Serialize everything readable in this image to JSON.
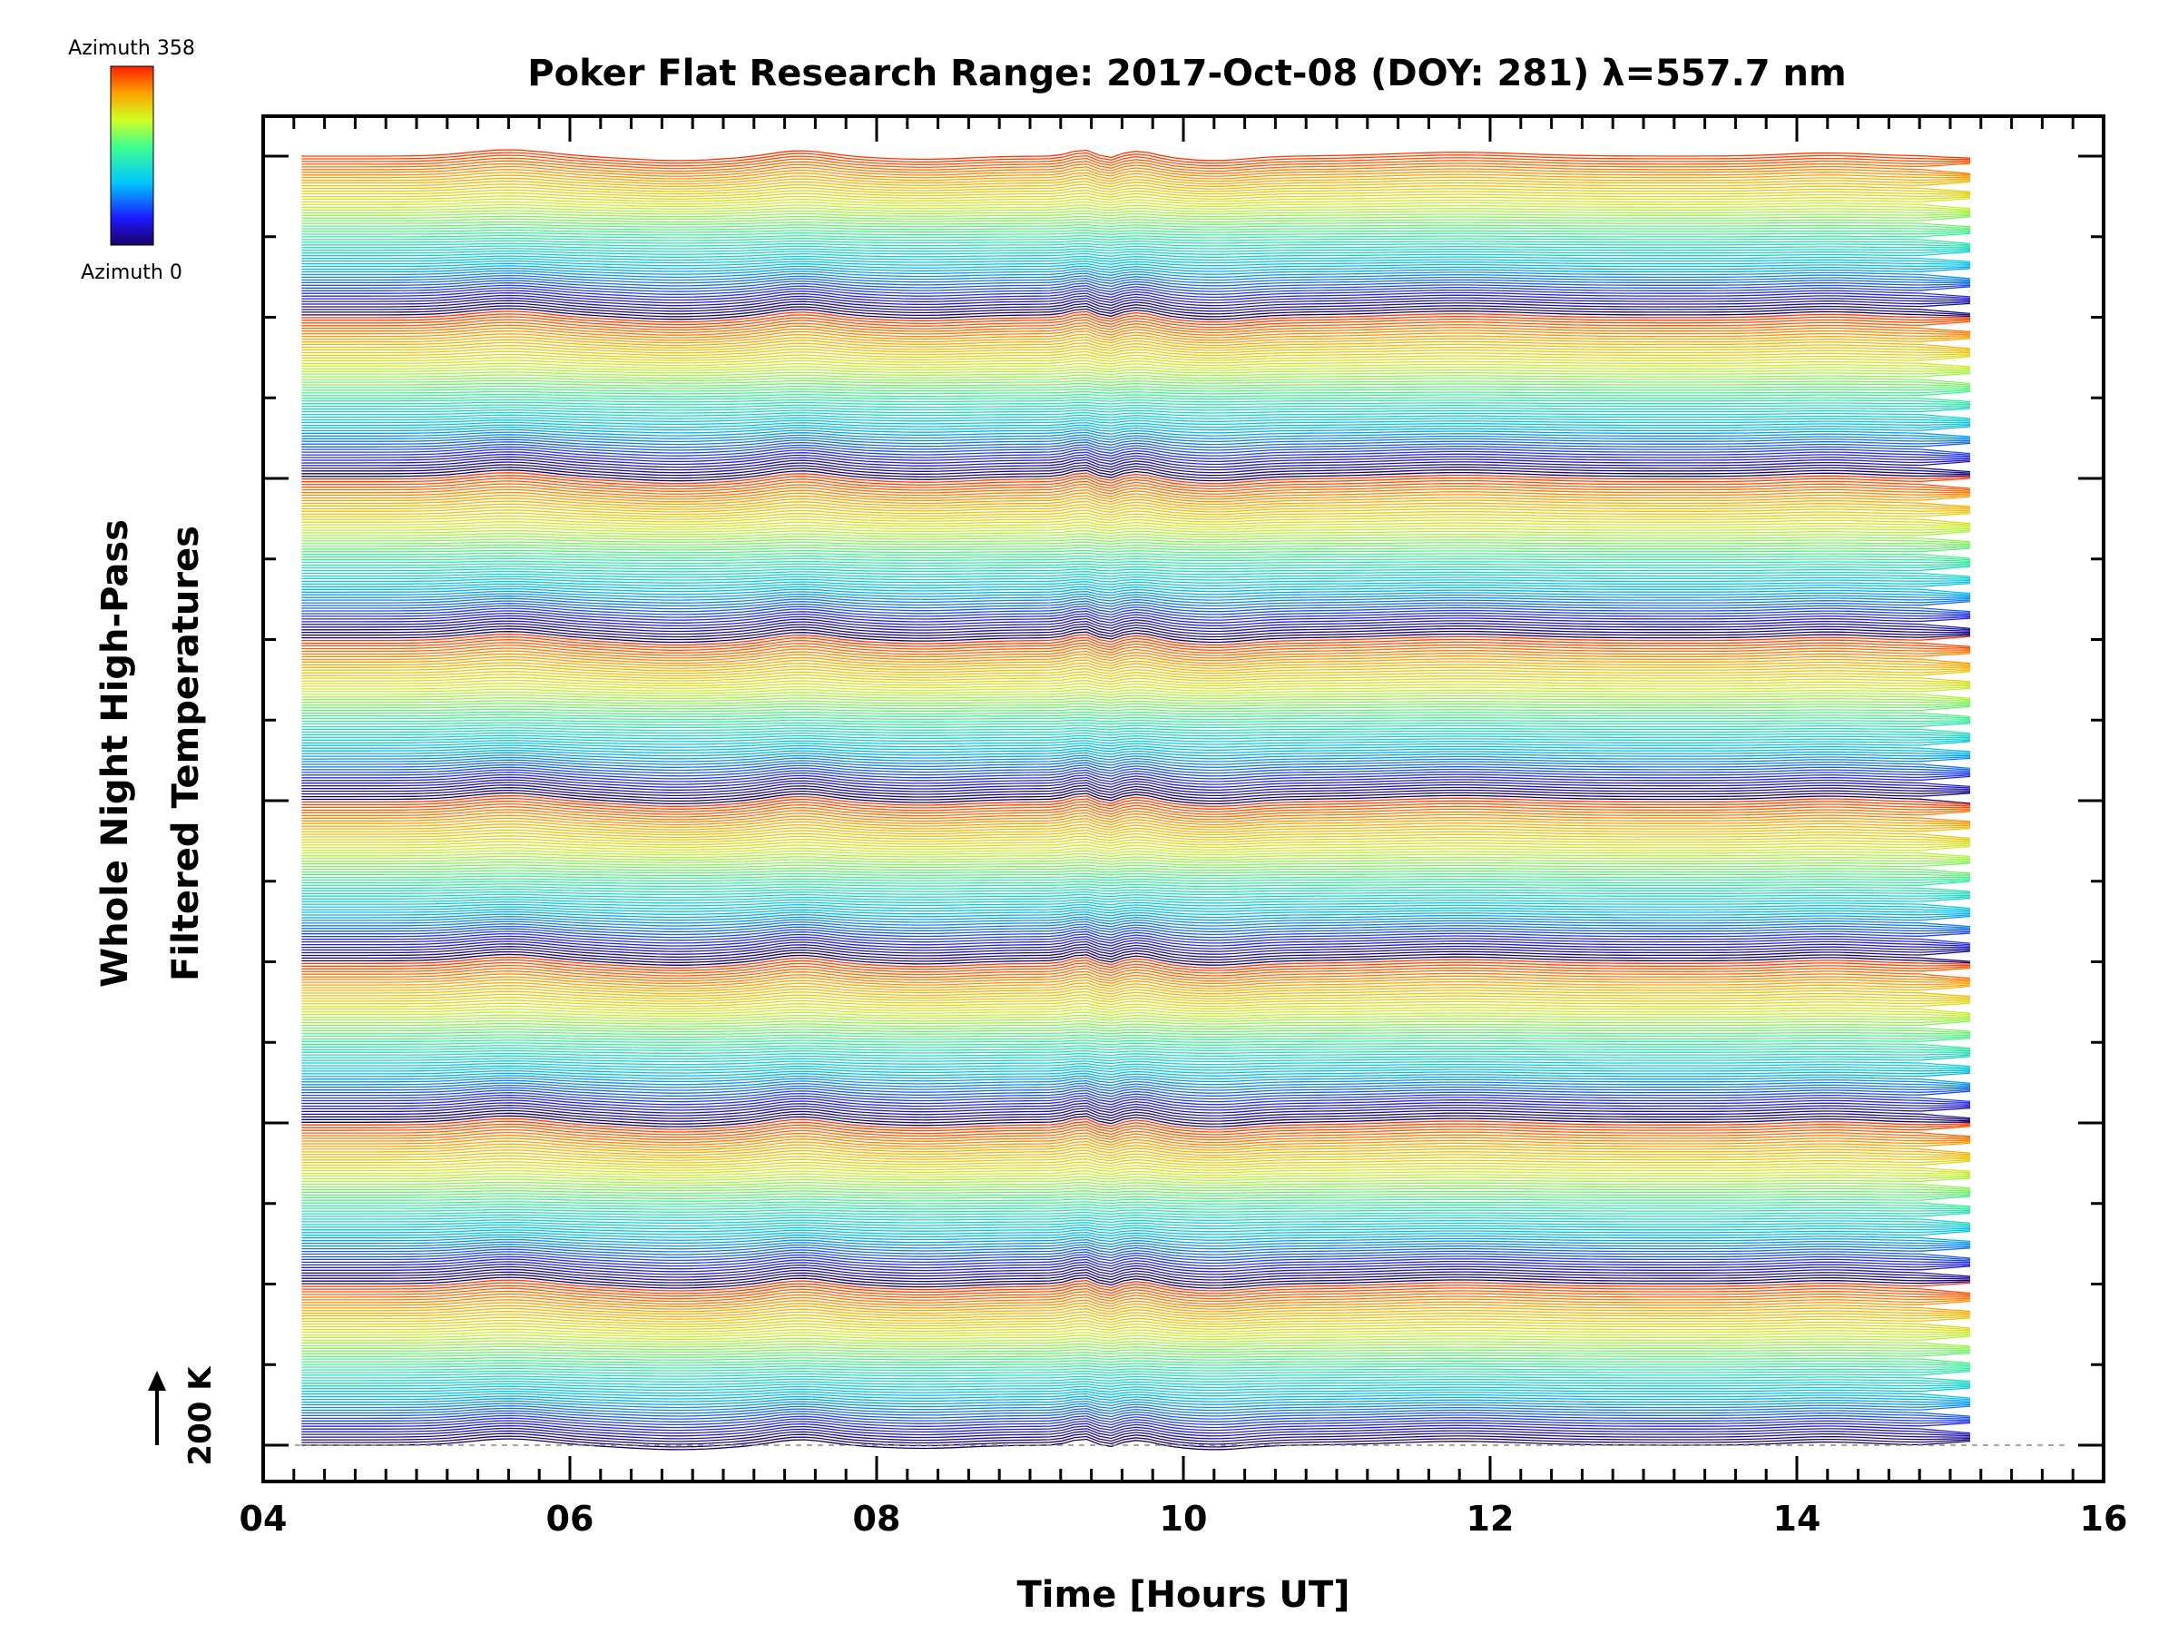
{
  "chart_data": {
    "type": "line",
    "title": "Poker Flat Research Range: 2017-Oct-08 (DOY: 281) λ=557.7 nm",
    "xlabel": "Time [Hours UT]",
    "ylabel_line1": "Whole Night High-Pass",
    "ylabel_line2": "Filtered Temperatures",
    "xlim": [
      4,
      16
    ],
    "x_ticks": [
      "04",
      "06",
      "08",
      "10",
      "12",
      "14",
      "16"
    ],
    "data_range_hours": [
      4.25,
      15.2
    ],
    "num_azimuth_traces": 480,
    "azimuth_cycles": 8,
    "colorbar": {
      "top_label": "Azimuth 358",
      "bottom_label": "Azimuth 0",
      "min": 0,
      "max": 358,
      "colormap": "rainbow (purple-blue-cyan-green-yellow-orange-red)"
    },
    "scale_bar_label": "200 K",
    "colors": {
      "background": "#ffffff",
      "axes": "#000000"
    }
  }
}
